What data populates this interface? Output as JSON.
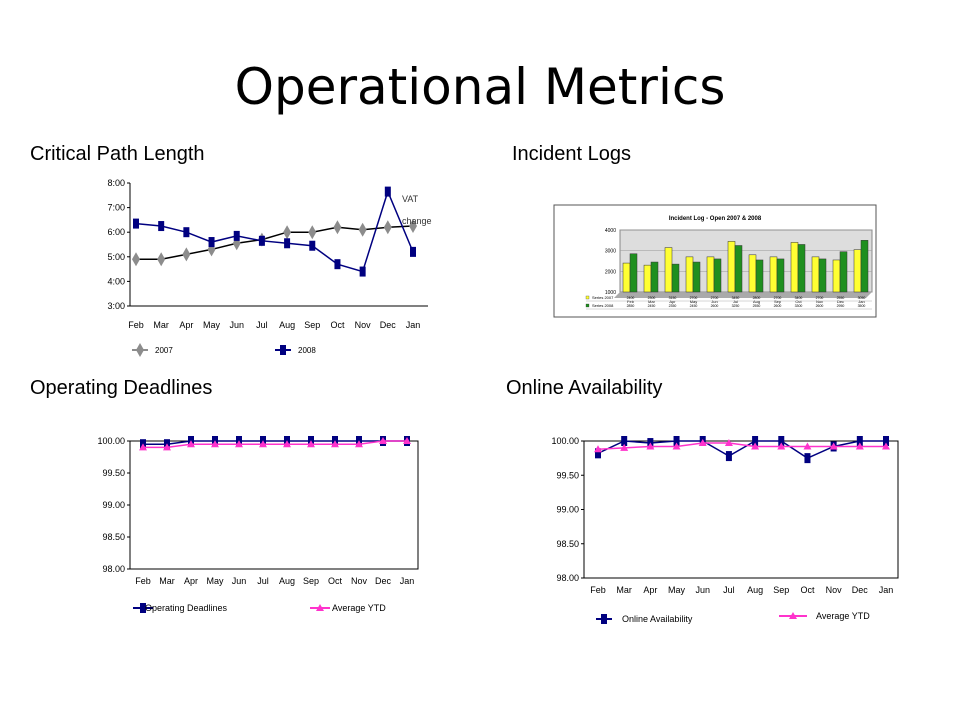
{
  "page": {
    "title": "Operational Metrics",
    "subtitles": {
      "critical_path": "Critical Path Length",
      "incident_logs": "Incident Logs",
      "operating_deadlines": "Operating Deadlines",
      "online_availability": "Online Availability"
    }
  },
  "chart_data": [
    {
      "id": "critical_path",
      "type": "line",
      "categories": [
        "Feb",
        "Mar",
        "Apr",
        "May",
        "Jun",
        "Jul",
        "Aug",
        "Sep",
        "Oct",
        "Nov",
        "Dec",
        "Jan"
      ],
      "yticks": [
        "3:00",
        "4:00",
        "5:00",
        "6:00",
        "7:00",
        "8:00"
      ],
      "ylim": [
        3,
        8
      ],
      "annotation": [
        "VAT",
        "change"
      ],
      "series": [
        {
          "name": "2007",
          "color": "#8c8c8c",
          "marker": "diamond",
          "values": [
            4.9,
            4.9,
            5.1,
            5.3,
            5.55,
            5.7,
            6.0,
            6.0,
            6.2,
            6.1,
            6.2,
            6.25
          ]
        },
        {
          "name": "2008",
          "color": "#000080",
          "marker": "square",
          "values": [
            6.35,
            6.25,
            6.0,
            5.6,
            5.85,
            5.65,
            5.55,
            5.45,
            4.7,
            4.4,
            7.65,
            5.2
          ]
        }
      ]
    },
    {
      "id": "incident_logs",
      "type": "bar",
      "title": "Incident Log - Open 2007 & 2008",
      "yticks": [
        "1000",
        "2000",
        "3000",
        "4000"
      ],
      "ylim": [
        1000,
        4000
      ],
      "categories": [
        "Feb",
        "Mar",
        "Apr",
        "May",
        "Jun",
        "Jul",
        "Aug",
        "Sep",
        "Oct",
        "Nov",
        "Dec",
        "Jan"
      ],
      "series": [
        {
          "name": "Series 2007",
          "color": "#ffff33",
          "values": [
            2400,
            2300,
            3150,
            2700,
            2700,
            3450,
            2800,
            2700,
            3400,
            2700,
            2550,
            3050
          ]
        },
        {
          "name": "Series 2008",
          "color": "#1f8f1f",
          "values": [
            2850,
            2450,
            2350,
            2450,
            2600,
            3250,
            2550,
            2600,
            3300,
            2600,
            2950,
            3500
          ]
        }
      ]
    },
    {
      "id": "operating_deadlines",
      "type": "line",
      "categories": [
        "Feb",
        "Mar",
        "Apr",
        "May",
        "Jun",
        "Jul",
        "Aug",
        "Sep",
        "Oct",
        "Nov",
        "Dec",
        "Jan"
      ],
      "yticks": [
        "98.00",
        "98.50",
        "99.00",
        "99.50",
        "100.00"
      ],
      "ylim": [
        98,
        100
      ],
      "series": [
        {
          "name": "Operating Deadlines",
          "color": "#000080",
          "marker": "square",
          "values": [
            99.95,
            99.95,
            100,
            100,
            100,
            100,
            100,
            100,
            100,
            100,
            100,
            100
          ]
        },
        {
          "name": "Average YTD",
          "color": "#ff33cc",
          "marker": "triangle",
          "values": [
            99.9,
            99.9,
            99.95,
            99.95,
            99.95,
            99.95,
            99.95,
            99.95,
            99.95,
            99.95,
            100,
            100
          ]
        }
      ]
    },
    {
      "id": "online_availability",
      "type": "line",
      "categories": [
        "Feb",
        "Mar",
        "Apr",
        "May",
        "Jun",
        "Jul",
        "Aug",
        "Sep",
        "Oct",
        "Nov",
        "Dec",
        "Jan"
      ],
      "yticks": [
        "98.00",
        "98.50",
        "99.00",
        "99.50",
        "100.00"
      ],
      "ylim": [
        98,
        100
      ],
      "series": [
        {
          "name": "Online Availability",
          "color": "#000080",
          "marker": "square",
          "values": [
            99.82,
            100,
            99.97,
            100,
            100,
            99.78,
            100,
            100,
            99.75,
            99.92,
            100,
            100
          ]
        },
        {
          "name": "Average YTD",
          "color": "#ff33cc",
          "marker": "triangle",
          "values": [
            99.88,
            99.9,
            99.92,
            99.92,
            99.97,
            99.97,
            99.92,
            99.92,
            99.92,
            99.92,
            99.92,
            99.92
          ]
        }
      ]
    }
  ]
}
